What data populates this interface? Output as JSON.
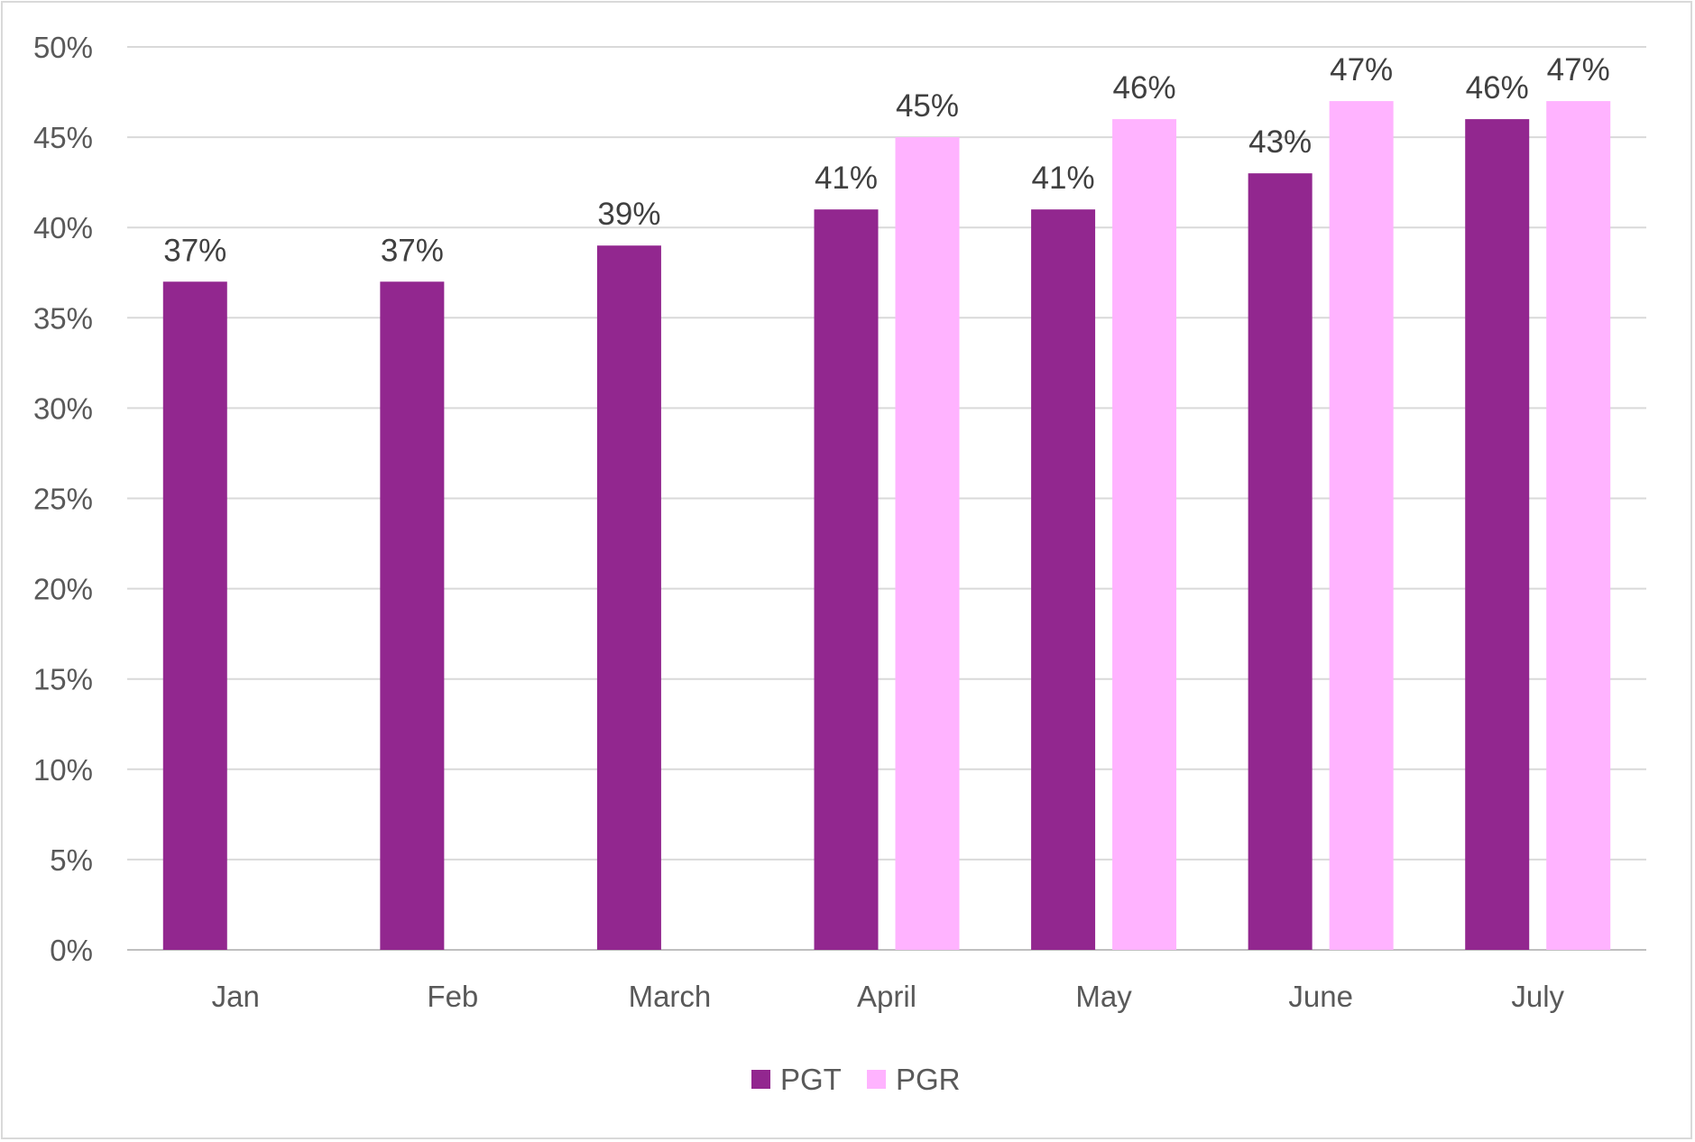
{
  "chart_data": {
    "type": "bar",
    "categories": [
      "Jan",
      "Feb",
      "March",
      "April",
      "May",
      "June",
      "July"
    ],
    "series": [
      {
        "name": "PGT",
        "color": "#92278f",
        "values": [
          37,
          37,
          39,
          41,
          41,
          43,
          46
        ]
      },
      {
        "name": "PGR",
        "color": "#ffb3ff",
        "values": [
          null,
          null,
          null,
          45,
          46,
          47,
          47
        ]
      }
    ],
    "data_label_suffix": "%",
    "y_ticks": [
      "0%",
      "5%",
      "10%",
      "15%",
      "20%",
      "25%",
      "30%",
      "35%",
      "40%",
      "45%",
      "50%"
    ],
    "ylim": [
      0,
      50
    ],
    "y_step": 5,
    "grid": true,
    "legend_position": "bottom",
    "title": "",
    "xlabel": "",
    "ylabel": ""
  }
}
